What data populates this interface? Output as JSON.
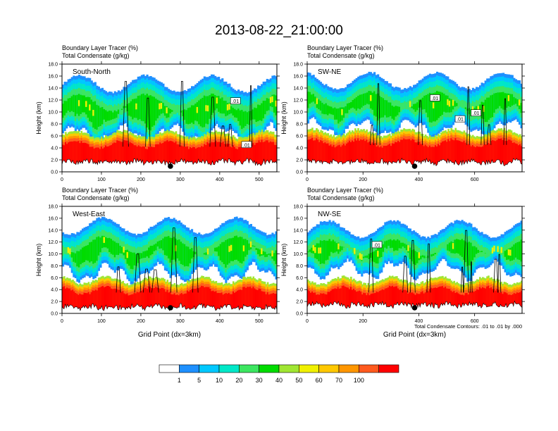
{
  "title": "2013-08-22_21:00:00",
  "colors": {
    "levels": [
      "#ffffff",
      "#1e90ff",
      "#00c8ff",
      "#00e8c8",
      "#3ce660",
      "#00dc00",
      "#a0e632",
      "#f0f000",
      "#ffc800",
      "#ff9600",
      "#ff5a1e",
      "#ff0000"
    ],
    "contour": "#000000"
  },
  "colorbar": {
    "labels": [
      "1",
      "5",
      "10",
      "20",
      "30",
      "40",
      "50",
      "60",
      "70",
      "100"
    ]
  },
  "chart_data": [
    {
      "type": "heatmap",
      "panel": "South-North",
      "header": [
        "Boundary Layer Tracer   (%)",
        "Total Condensate   (g/kg)"
      ],
      "xlim": [
        0,
        545
      ],
      "xticks": [
        0,
        100,
        200,
        300,
        400,
        500
      ],
      "ylim": [
        0,
        18
      ],
      "yticks": [
        "0.0",
        "2.0",
        "4.0",
        "6.0",
        "8.0",
        "10.0",
        "12.0",
        "14.0",
        "16.0",
        "18.0"
      ],
      "ylabel": "Height (km)",
      "xlabel": "",
      "marker_x": 275,
      "contour_labels": [
        {
          "text": ".01",
          "x": 440,
          "y": 11.8
        },
        {
          "text": ".01",
          "x": 468,
          "y": 4.5
        }
      ],
      "cloud_base_km": 6.0,
      "cloud_top_km": 14.5,
      "terrain_km": 1.2,
      "pbl_top_km": 5.2
    },
    {
      "type": "heatmap",
      "panel": "SW-NE",
      "header": [
        "Boundary Layer Tracer   (%)",
        "Total Condensate   (g/kg)"
      ],
      "xlim": [
        0,
        770
      ],
      "xticks": [
        0,
        200,
        400,
        600
      ],
      "ylim": [
        0,
        18
      ],
      "yticks": [
        "0.0",
        "2.0",
        "4.0",
        "6.0",
        "8.0",
        "10.0",
        "12.0",
        "14.0",
        "16.0",
        "18.0"
      ],
      "ylabel": "Height (km)",
      "xlabel": "",
      "marker_x": 385,
      "contour_labels": [
        {
          "text": ".01",
          "x": 458,
          "y": 12.3
        },
        {
          "text": ".01",
          "x": 548,
          "y": 8.8
        },
        {
          "text": ".01",
          "x": 605,
          "y": 9.8
        }
      ],
      "cloud_base_km": 7.0,
      "cloud_top_km": 15.0,
      "terrain_km": 1.2,
      "pbl_top_km": 5.5
    },
    {
      "type": "heatmap",
      "panel": "West-East",
      "header": [
        "Boundary Layer Tracer   (%)",
        "Total Condensate   (g/kg)"
      ],
      "xlim": [
        0,
        545
      ],
      "xticks": [
        0,
        100,
        200,
        300,
        400,
        500
      ],
      "ylim": [
        0,
        18
      ],
      "yticks": [
        "0.0",
        "2.0",
        "4.0",
        "6.0",
        "8.0",
        "10.0",
        "12.0",
        "14.0",
        "16.0",
        "18.0"
      ],
      "ylabel": "Height (km)",
      "xlabel": "Grid Point (dx=3km)",
      "marker_x": 275,
      "contour_labels": [],
      "cloud_base_km": 6.5,
      "cloud_top_km": 14.5,
      "terrain_km": 0.6,
      "pbl_top_km": 4.5
    },
    {
      "type": "heatmap",
      "panel": "NW-SE",
      "header": [
        "Boundary Layer Tracer   (%)",
        "Total Condensate   (g/kg)"
      ],
      "xlim": [
        0,
        770
      ],
      "xticks": [
        0,
        200,
        400,
        600
      ],
      "ylim": [
        0,
        18
      ],
      "yticks": [
        "0.0",
        "2.0",
        "4.0",
        "6.0",
        "8.0",
        "10.0",
        "12.0",
        "14.0",
        "16.0",
        "18.0"
      ],
      "ylabel": "Height (km)",
      "xlabel": "Grid Point (dx=3km)",
      "marker_x": 385,
      "contour_labels": [
        {
          "text": ".01",
          "x": 250,
          "y": 11.5
        }
      ],
      "cloud_base_km": 7.0,
      "cloud_top_km": 14.0,
      "terrain_km": 1.0,
      "pbl_top_km": 4.5,
      "footnote": "Total Condensate Contours: .01 to .01 by .000"
    }
  ]
}
